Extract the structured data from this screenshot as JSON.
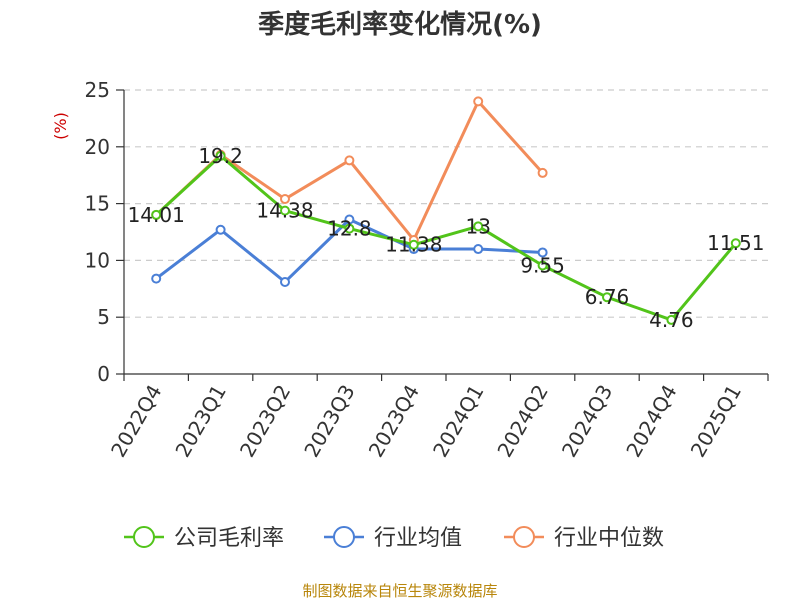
{
  "chart_data": {
    "type": "line",
    "title": "季度毛利率变化情况(%)",
    "ylabel": "(%)",
    "xlabel": "",
    "ylim": [
      0,
      25
    ],
    "yticks": [
      0,
      5,
      10,
      15,
      20,
      25
    ],
    "grid": "horizontal dashed",
    "legend_position": "bottom",
    "categories": [
      "2022Q4",
      "2023Q1",
      "2023Q2",
      "2023Q3",
      "2023Q4",
      "2024Q1",
      "2024Q2",
      "2024Q3",
      "2024Q4",
      "2025Q1"
    ],
    "series": [
      {
        "name": "公司毛利率",
        "color": "#52c41a",
        "values": [
          14.01,
          19.2,
          14.38,
          12.8,
          11.38,
          13,
          9.55,
          6.76,
          4.76,
          11.51
        ],
        "labels": [
          "14.01",
          "19.2",
          "14.38",
          "12.8",
          "11.38",
          "13",
          "9.55",
          "6.76",
          "4.76",
          "11.51"
        ]
      },
      {
        "name": "行业均值",
        "color": "#4a7fd6",
        "values": [
          8.4,
          12.7,
          8.1,
          13.6,
          11.0,
          11.0,
          10.7,
          null,
          null,
          null
        ]
      },
      {
        "name": "行业中位数",
        "color": "#f28c5a",
        "values": [
          14.0,
          19.3,
          15.4,
          18.8,
          11.8,
          24.0,
          17.7,
          null,
          null,
          null
        ]
      }
    ]
  },
  "source_text": "制图数据来自恒生聚源数据库"
}
